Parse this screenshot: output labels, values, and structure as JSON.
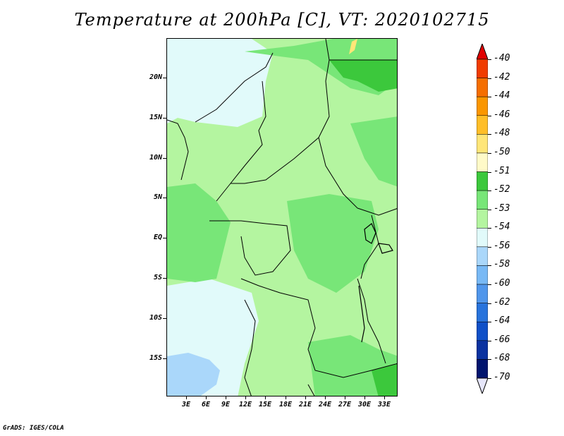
{
  "title": "Temperature at 200hPa [C], VT: 2020102715",
  "credit": "GrADS: IGES/COLA",
  "lat_ticks": [
    "20N",
    "15N",
    "10N",
    "5N",
    "EQ",
    "5S",
    "10S",
    "15S"
  ],
  "lon_ticks": [
    "3E",
    "6E",
    "9E",
    "12E",
    "15E",
    "18E",
    "21E",
    "24E",
    "27E",
    "30E",
    "33E"
  ],
  "colorbar": {
    "labels": [
      "-40",
      "-42",
      "-44",
      "-46",
      "-48",
      "-50",
      "-51",
      "-52",
      "-53",
      "-54",
      "-56",
      "-58",
      "-60",
      "-62",
      "-64",
      "-66",
      "-68",
      "-70"
    ],
    "colors": [
      "#e00000",
      "#f03c00",
      "#f56e00",
      "#fa9600",
      "#ffbe28",
      "#ffe678",
      "#fffac8",
      "#3cc83c",
      "#78e678",
      "#b4f5a0",
      "#e1fafa",
      "#aad7fa",
      "#78b9f5",
      "#5096eb",
      "#2873dc",
      "#0f50c8",
      "#0a32a0",
      "#00146e",
      "#e6e6fa"
    ]
  },
  "map_regions": {
    "base_color": "#b4f5a0",
    "cold_color": "#e1fafa",
    "colder_color": "#aad7fa",
    "warm_color": "#78e678",
    "warmer_color": "#3cc83c",
    "hot_color": "#ffe678"
  }
}
